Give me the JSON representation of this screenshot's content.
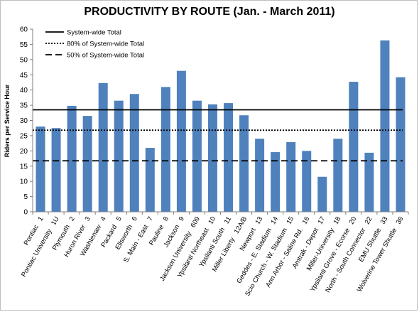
{
  "chart_data": {
    "type": "bar",
    "title": "PRODUCTIVITY BY ROUTE (Jan. - March 2011)",
    "xlabel": "",
    "ylabel": "Riders per Service Hour",
    "ylim": [
      0,
      60
    ],
    "yticks": [
      0,
      5,
      10,
      15,
      20,
      25,
      30,
      35,
      40,
      45,
      50,
      55,
      60
    ],
    "grid": false,
    "legend_position": "top-left",
    "bar_color": "#4f81bd",
    "categories": [
      {
        "name": "Pontiac",
        "route": "1"
      },
      {
        "name": "Pontiac University",
        "route": "1U"
      },
      {
        "name": "Plymouth",
        "route": "2"
      },
      {
        "name": "Huron River",
        "route": "3"
      },
      {
        "name": "Washtenaw",
        "route": "4"
      },
      {
        "name": "Packard",
        "route": "5"
      },
      {
        "name": "Ellsworth",
        "route": "6"
      },
      {
        "name": "S. Main - East",
        "route": "7"
      },
      {
        "name": "Pauline",
        "route": "8"
      },
      {
        "name": "Jackson",
        "route": "9"
      },
      {
        "name": "Jackson University",
        "route": "609"
      },
      {
        "name": "Ypsilanti Northeast",
        "route": "10"
      },
      {
        "name": "Ypsilanti South",
        "route": "11"
      },
      {
        "name": "Miller Liberty",
        "route": "12A/B"
      },
      {
        "name": "Newport",
        "route": "13"
      },
      {
        "name": "Geddes - E. Stadium",
        "route": "14"
      },
      {
        "name": "Scio Church - W. Stadium",
        "route": "15"
      },
      {
        "name": "Ann Arbor - Saline Rd.",
        "route": "16"
      },
      {
        "name": "Amtrak - Depot",
        "route": "17"
      },
      {
        "name": "Miller-University",
        "route": "18"
      },
      {
        "name": "Ypsilanti Grove - Ecorse",
        "route": "20"
      },
      {
        "name": "North - South Connector",
        "route": "22"
      },
      {
        "name": "EMU Shuttle",
        "route": "33"
      },
      {
        "name": "Wolverine Tower Shuttle",
        "route": "36"
      }
    ],
    "values": [
      28,
      27.5,
      34.8,
      31.5,
      42.3,
      36.5,
      38.7,
      21,
      41,
      46.3,
      36.5,
      35.3,
      35.7,
      31.7,
      24,
      19.6,
      22.9,
      20,
      11.5,
      24,
      42.7,
      19.4,
      56.3,
      44.2
    ],
    "reference_lines": [
      {
        "name": "System-wide Total",
        "value": 33.5,
        "style": "solid"
      },
      {
        "name": "80% of System-wide Total",
        "value": 26.8,
        "style": "dotted"
      },
      {
        "name": "50% of System-wide Total",
        "value": 16.75,
        "style": "dashed"
      }
    ]
  }
}
